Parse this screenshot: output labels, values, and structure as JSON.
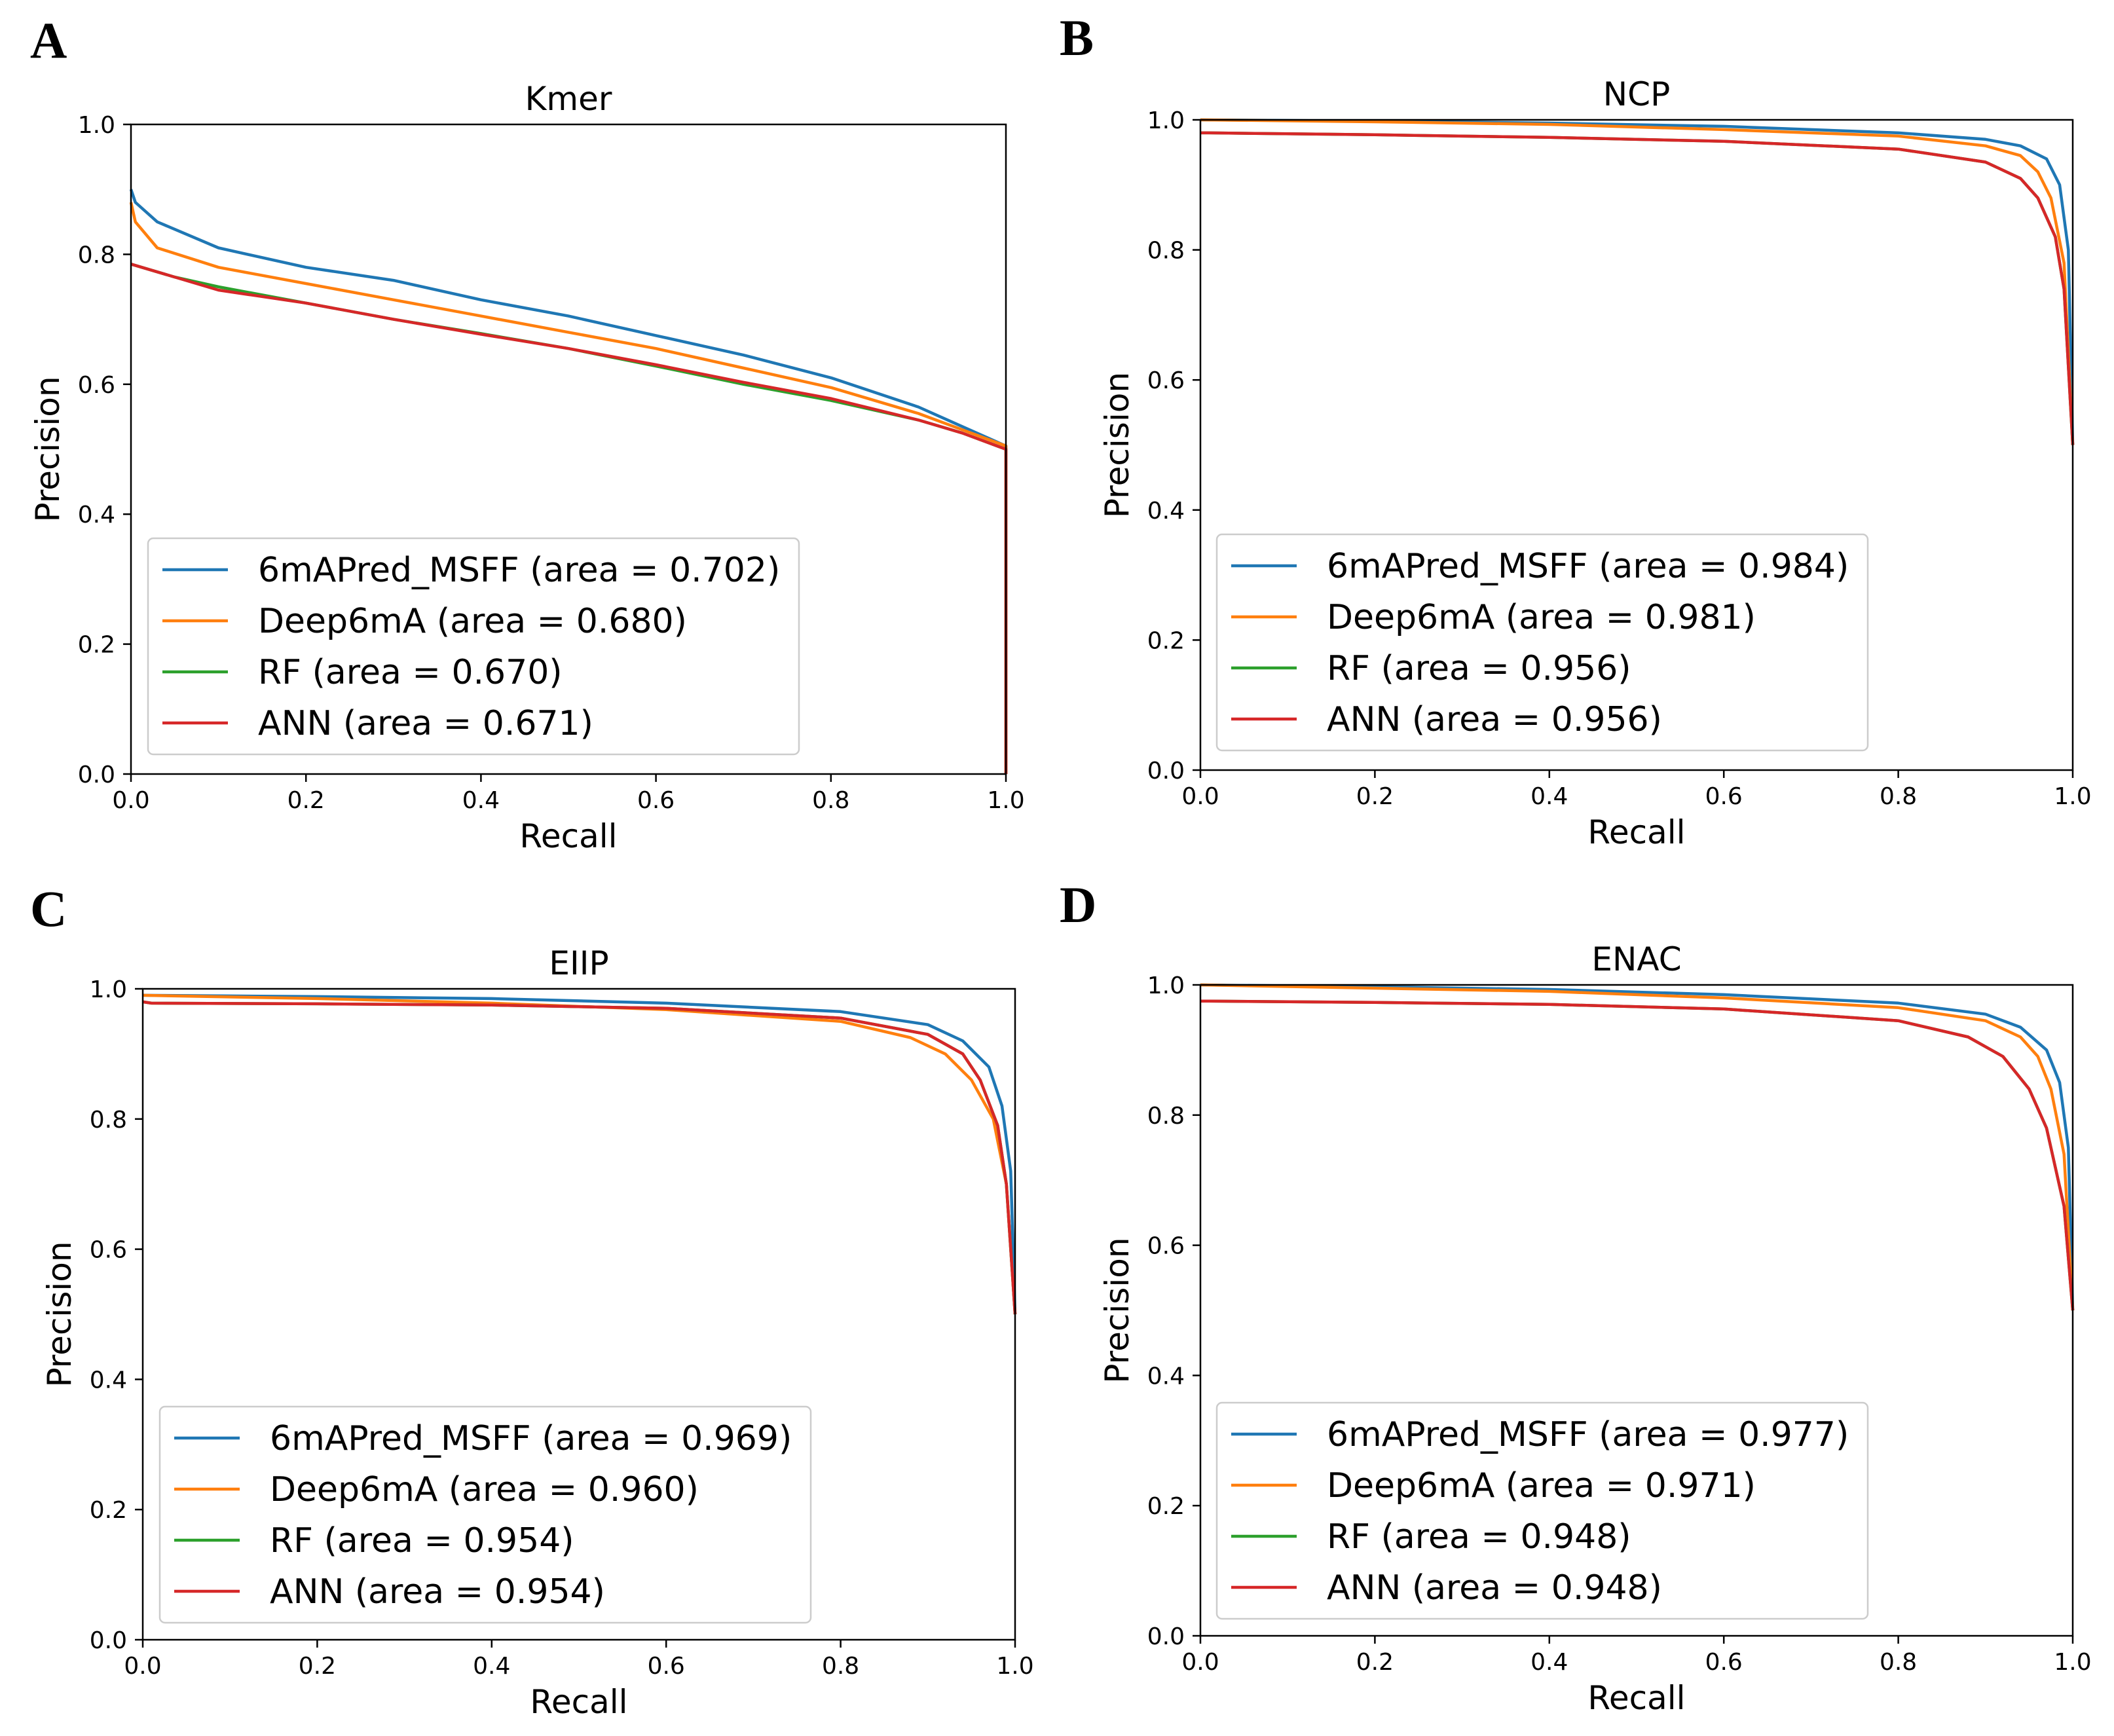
{
  "figure": {
    "panels": [
      "A",
      "B",
      "C",
      "D"
    ]
  },
  "chart_data": [
    {
      "panel": "A",
      "type": "line",
      "title": "Kmer",
      "xlabel": "Recall",
      "ylabel": "Precision",
      "xlim": [
        0.0,
        1.0
      ],
      "ylim": [
        0.0,
        1.0
      ],
      "xticks": [
        "0.0",
        "0.2",
        "0.4",
        "0.6",
        "0.8",
        "1.0"
      ],
      "yticks": [
        "0.0",
        "0.2",
        "0.4",
        "0.6",
        "0.8",
        "1.0"
      ],
      "grid": false,
      "legend_loc": "lower-left",
      "series": [
        {
          "name": "6mAPred_MSFF (area = 0.702)",
          "color": "#1f77b4",
          "x": [
            0.0,
            0.005,
            0.03,
            0.1,
            0.2,
            0.3,
            0.4,
            0.5,
            0.6,
            0.7,
            0.8,
            0.9,
            0.95,
            1.0,
            1.0
          ],
          "y": [
            0.9,
            0.88,
            0.85,
            0.81,
            0.78,
            0.76,
            0.73,
            0.705,
            0.675,
            0.645,
            0.61,
            0.565,
            0.535,
            0.505,
            0.0
          ]
        },
        {
          "name": "Deep6mA (area = 0.680)",
          "color": "#ff7f0e",
          "x": [
            0.0,
            0.005,
            0.03,
            0.1,
            0.2,
            0.3,
            0.4,
            0.5,
            0.6,
            0.7,
            0.8,
            0.9,
            0.95,
            1.0,
            1.0
          ],
          "y": [
            0.88,
            0.85,
            0.81,
            0.78,
            0.755,
            0.73,
            0.705,
            0.68,
            0.655,
            0.625,
            0.595,
            0.555,
            0.53,
            0.505,
            0.0
          ]
        },
        {
          "name": "RF (area = 0.670)",
          "color": "#2ca02c",
          "x": [
            0.0,
            0.05,
            0.1,
            0.2,
            0.3,
            0.4,
            0.5,
            0.6,
            0.7,
            0.8,
            0.9,
            0.95,
            1.0,
            1.0
          ],
          "y": [
            0.785,
            0.765,
            0.75,
            0.725,
            0.7,
            0.678,
            0.655,
            0.628,
            0.6,
            0.575,
            0.545,
            0.525,
            0.5,
            0.0
          ]
        },
        {
          "name": "ANN (area = 0.671)",
          "color": "#d62728",
          "x": [
            0.0,
            0.05,
            0.1,
            0.2,
            0.3,
            0.4,
            0.5,
            0.6,
            0.7,
            0.8,
            0.9,
            0.95,
            1.0,
            1.0
          ],
          "y": [
            0.785,
            0.765,
            0.745,
            0.725,
            0.7,
            0.677,
            0.655,
            0.63,
            0.603,
            0.578,
            0.545,
            0.525,
            0.5,
            0.0
          ]
        }
      ]
    },
    {
      "panel": "B",
      "type": "line",
      "title": "NCP",
      "xlabel": "Recall",
      "ylabel": "Precision",
      "xlim": [
        0.0,
        1.0
      ],
      "ylim": [
        0.0,
        1.0
      ],
      "xticks": [
        "0.0",
        "0.2",
        "0.4",
        "0.6",
        "0.8",
        "1.0"
      ],
      "yticks": [
        "0.0",
        "0.2",
        "0.4",
        "0.6",
        "0.8",
        "1.0"
      ],
      "grid": false,
      "legend_loc": "lower-left",
      "series": [
        {
          "name": "6mAPred_MSFF (area = 0.984)",
          "color": "#1f77b4",
          "x": [
            0.0,
            0.2,
            0.4,
            0.6,
            0.8,
            0.9,
            0.94,
            0.97,
            0.985,
            0.995,
            1.0
          ],
          "y": [
            1.0,
            0.998,
            0.995,
            0.99,
            0.98,
            0.97,
            0.96,
            0.94,
            0.9,
            0.8,
            0.5
          ]
        },
        {
          "name": "Deep6mA (area = 0.981)",
          "color": "#ff7f0e",
          "x": [
            0.0,
            0.2,
            0.4,
            0.6,
            0.8,
            0.9,
            0.94,
            0.96,
            0.975,
            0.99,
            1.0
          ],
          "y": [
            1.0,
            0.997,
            0.993,
            0.985,
            0.975,
            0.96,
            0.945,
            0.92,
            0.88,
            0.78,
            0.5
          ]
        },
        {
          "name": "RF (area = 0.956)",
          "color": "#2ca02c",
          "x": [
            0.0,
            0.01,
            0.2,
            0.4,
            0.6,
            0.8,
            0.9,
            0.94,
            0.96,
            0.98,
            0.99,
            1.0
          ],
          "y": [
            0.98,
            0.98,
            0.977,
            0.973,
            0.967,
            0.955,
            0.935,
            0.91,
            0.88,
            0.82,
            0.74,
            0.5
          ]
        },
        {
          "name": "ANN (area = 0.956)",
          "color": "#d62728",
          "x": [
            0.0,
            0.01,
            0.2,
            0.4,
            0.6,
            0.8,
            0.9,
            0.94,
            0.96,
            0.98,
            0.99,
            1.0
          ],
          "y": [
            0.98,
            0.98,
            0.977,
            0.973,
            0.967,
            0.955,
            0.935,
            0.91,
            0.88,
            0.82,
            0.74,
            0.5
          ]
        }
      ]
    },
    {
      "panel": "C",
      "type": "line",
      "title": "EIIP",
      "xlabel": "Recall",
      "ylabel": "Precision",
      "xlim": [
        0.0,
        1.0
      ],
      "ylim": [
        0.0,
        1.0
      ],
      "xticks": [
        "0.0",
        "0.2",
        "0.4",
        "0.6",
        "0.8",
        "1.0"
      ],
      "yticks": [
        "0.0",
        "0.2",
        "0.4",
        "0.6",
        "0.8",
        "1.0"
      ],
      "grid": false,
      "legend_loc": "lower-left",
      "series": [
        {
          "name": "6mAPred_MSFF (area = 0.969)",
          "color": "#1f77b4",
          "x": [
            0.0,
            0.2,
            0.4,
            0.6,
            0.8,
            0.9,
            0.94,
            0.97,
            0.985,
            0.995,
            1.0
          ],
          "y": [
            0.99,
            0.988,
            0.985,
            0.978,
            0.965,
            0.945,
            0.92,
            0.88,
            0.82,
            0.72,
            0.5
          ]
        },
        {
          "name": "Deep6mA (area = 0.960)",
          "color": "#ff7f0e",
          "x": [
            0.0,
            0.2,
            0.4,
            0.6,
            0.8,
            0.88,
            0.92,
            0.95,
            0.975,
            0.99,
            1.0
          ],
          "y": [
            0.99,
            0.985,
            0.978,
            0.968,
            0.95,
            0.925,
            0.9,
            0.86,
            0.8,
            0.7,
            0.5
          ]
        },
        {
          "name": "RF (area = 0.954)",
          "color": "#2ca02c",
          "x": [
            0.0,
            0.01,
            0.2,
            0.4,
            0.6,
            0.8,
            0.9,
            0.94,
            0.96,
            0.98,
            0.99,
            1.0
          ],
          "y": [
            0.98,
            0.978,
            0.977,
            0.975,
            0.97,
            0.955,
            0.93,
            0.9,
            0.86,
            0.79,
            0.7,
            0.5
          ]
        },
        {
          "name": "ANN (area = 0.954)",
          "color": "#d62728",
          "x": [
            0.0,
            0.01,
            0.2,
            0.4,
            0.6,
            0.8,
            0.9,
            0.94,
            0.96,
            0.98,
            0.99,
            1.0
          ],
          "y": [
            0.98,
            0.978,
            0.977,
            0.975,
            0.97,
            0.955,
            0.93,
            0.9,
            0.86,
            0.79,
            0.7,
            0.5
          ]
        }
      ]
    },
    {
      "panel": "D",
      "type": "line",
      "title": "ENAC",
      "xlabel": "Recall",
      "ylabel": "Precision",
      "xlim": [
        0.0,
        1.0
      ],
      "ylim": [
        0.0,
        1.0
      ],
      "xticks": [
        "0.0",
        "0.2",
        "0.4",
        "0.6",
        "0.8",
        "1.0"
      ],
      "yticks": [
        "0.0",
        "0.2",
        "0.4",
        "0.6",
        "0.8",
        "1.0"
      ],
      "grid": false,
      "legend_loc": "lower-left",
      "series": [
        {
          "name": "6mAPred_MSFF (area = 0.977)",
          "color": "#1f77b4",
          "x": [
            0.0,
            0.2,
            0.4,
            0.6,
            0.8,
            0.9,
            0.94,
            0.97,
            0.985,
            0.995,
            1.0
          ],
          "y": [
            1.0,
            0.997,
            0.993,
            0.985,
            0.972,
            0.955,
            0.935,
            0.9,
            0.85,
            0.75,
            0.5
          ]
        },
        {
          "name": "Deep6mA (area = 0.971)",
          "color": "#ff7f0e",
          "x": [
            0.0,
            0.2,
            0.4,
            0.6,
            0.8,
            0.9,
            0.94,
            0.96,
            0.975,
            0.99,
            1.0
          ],
          "y": [
            1.0,
            0.995,
            0.99,
            0.98,
            0.965,
            0.945,
            0.92,
            0.89,
            0.84,
            0.74,
            0.5
          ]
        },
        {
          "name": "RF (area = 0.948)",
          "color": "#2ca02c",
          "x": [
            0.0,
            0.01,
            0.2,
            0.4,
            0.6,
            0.8,
            0.88,
            0.92,
            0.95,
            0.97,
            0.99,
            1.0
          ],
          "y": [
            0.975,
            0.975,
            0.973,
            0.97,
            0.963,
            0.945,
            0.92,
            0.89,
            0.84,
            0.78,
            0.66,
            0.5
          ]
        },
        {
          "name": "ANN (area = 0.948)",
          "color": "#d62728",
          "x": [
            0.0,
            0.01,
            0.2,
            0.4,
            0.6,
            0.8,
            0.88,
            0.92,
            0.95,
            0.97,
            0.99,
            1.0
          ],
          "y": [
            0.975,
            0.975,
            0.973,
            0.97,
            0.963,
            0.945,
            0.92,
            0.89,
            0.84,
            0.78,
            0.66,
            0.5
          ]
        }
      ]
    }
  ]
}
